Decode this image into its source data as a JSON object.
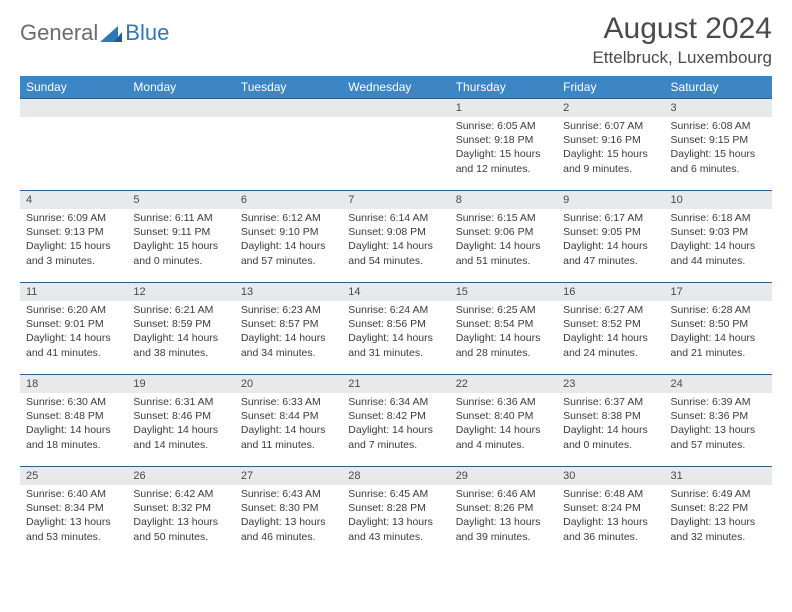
{
  "logo": {
    "gray": "General",
    "blue": "Blue"
  },
  "title": "August 2024",
  "location": "Ettelbruck, Luxembourg",
  "headers": [
    "Sunday",
    "Monday",
    "Tuesday",
    "Wednesday",
    "Thursday",
    "Friday",
    "Saturday"
  ],
  "colors": {
    "header_bg": "#3d86c6",
    "daynum_bg": "#e8e9ea",
    "rule": "#2f5d8c",
    "logo_gray": "#6b6b6b",
    "logo_blue": "#2f77b5"
  },
  "weeks": [
    [
      null,
      null,
      null,
      null,
      {
        "n": "1",
        "sr": "6:05 AM",
        "ss": "9:18 PM",
        "dl": "15 hours and 12 minutes."
      },
      {
        "n": "2",
        "sr": "6:07 AM",
        "ss": "9:16 PM",
        "dl": "15 hours and 9 minutes."
      },
      {
        "n": "3",
        "sr": "6:08 AM",
        "ss": "9:15 PM",
        "dl": "15 hours and 6 minutes."
      }
    ],
    [
      {
        "n": "4",
        "sr": "6:09 AM",
        "ss": "9:13 PM",
        "dl": "15 hours and 3 minutes."
      },
      {
        "n": "5",
        "sr": "6:11 AM",
        "ss": "9:11 PM",
        "dl": "15 hours and 0 minutes."
      },
      {
        "n": "6",
        "sr": "6:12 AM",
        "ss": "9:10 PM",
        "dl": "14 hours and 57 minutes."
      },
      {
        "n": "7",
        "sr": "6:14 AM",
        "ss": "9:08 PM",
        "dl": "14 hours and 54 minutes."
      },
      {
        "n": "8",
        "sr": "6:15 AM",
        "ss": "9:06 PM",
        "dl": "14 hours and 51 minutes."
      },
      {
        "n": "9",
        "sr": "6:17 AM",
        "ss": "9:05 PM",
        "dl": "14 hours and 47 minutes."
      },
      {
        "n": "10",
        "sr": "6:18 AM",
        "ss": "9:03 PM",
        "dl": "14 hours and 44 minutes."
      }
    ],
    [
      {
        "n": "11",
        "sr": "6:20 AM",
        "ss": "9:01 PM",
        "dl": "14 hours and 41 minutes."
      },
      {
        "n": "12",
        "sr": "6:21 AM",
        "ss": "8:59 PM",
        "dl": "14 hours and 38 minutes."
      },
      {
        "n": "13",
        "sr": "6:23 AM",
        "ss": "8:57 PM",
        "dl": "14 hours and 34 minutes."
      },
      {
        "n": "14",
        "sr": "6:24 AM",
        "ss": "8:56 PM",
        "dl": "14 hours and 31 minutes."
      },
      {
        "n": "15",
        "sr": "6:25 AM",
        "ss": "8:54 PM",
        "dl": "14 hours and 28 minutes."
      },
      {
        "n": "16",
        "sr": "6:27 AM",
        "ss": "8:52 PM",
        "dl": "14 hours and 24 minutes."
      },
      {
        "n": "17",
        "sr": "6:28 AM",
        "ss": "8:50 PM",
        "dl": "14 hours and 21 minutes."
      }
    ],
    [
      {
        "n": "18",
        "sr": "6:30 AM",
        "ss": "8:48 PM",
        "dl": "14 hours and 18 minutes."
      },
      {
        "n": "19",
        "sr": "6:31 AM",
        "ss": "8:46 PM",
        "dl": "14 hours and 14 minutes."
      },
      {
        "n": "20",
        "sr": "6:33 AM",
        "ss": "8:44 PM",
        "dl": "14 hours and 11 minutes."
      },
      {
        "n": "21",
        "sr": "6:34 AM",
        "ss": "8:42 PM",
        "dl": "14 hours and 7 minutes."
      },
      {
        "n": "22",
        "sr": "6:36 AM",
        "ss": "8:40 PM",
        "dl": "14 hours and 4 minutes."
      },
      {
        "n": "23",
        "sr": "6:37 AM",
        "ss": "8:38 PM",
        "dl": "14 hours and 0 minutes."
      },
      {
        "n": "24",
        "sr": "6:39 AM",
        "ss": "8:36 PM",
        "dl": "13 hours and 57 minutes."
      }
    ],
    [
      {
        "n": "25",
        "sr": "6:40 AM",
        "ss": "8:34 PM",
        "dl": "13 hours and 53 minutes."
      },
      {
        "n": "26",
        "sr": "6:42 AM",
        "ss": "8:32 PM",
        "dl": "13 hours and 50 minutes."
      },
      {
        "n": "27",
        "sr": "6:43 AM",
        "ss": "8:30 PM",
        "dl": "13 hours and 46 minutes."
      },
      {
        "n": "28",
        "sr": "6:45 AM",
        "ss": "8:28 PM",
        "dl": "13 hours and 43 minutes."
      },
      {
        "n": "29",
        "sr": "6:46 AM",
        "ss": "8:26 PM",
        "dl": "13 hours and 39 minutes."
      },
      {
        "n": "30",
        "sr": "6:48 AM",
        "ss": "8:24 PM",
        "dl": "13 hours and 36 minutes."
      },
      {
        "n": "31",
        "sr": "6:49 AM",
        "ss": "8:22 PM",
        "dl": "13 hours and 32 minutes."
      }
    ]
  ],
  "labels": {
    "sunrise": "Sunrise: ",
    "sunset": "Sunset: ",
    "daylight": "Daylight: "
  }
}
